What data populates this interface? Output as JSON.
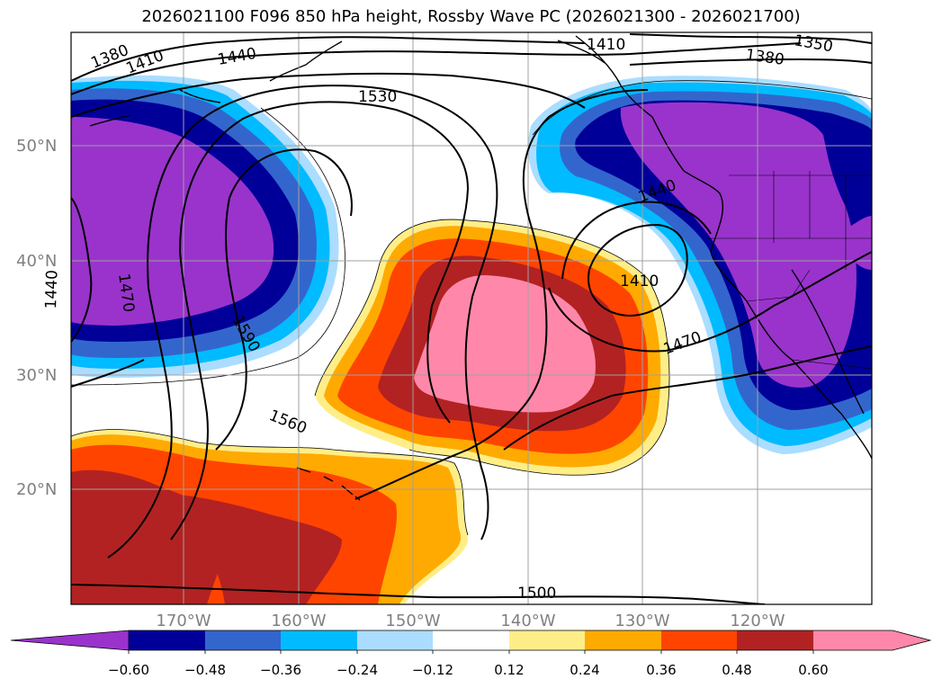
{
  "title": "2026021100 F096 850 hPa height, Rossby Wave PC (2026021300 - 2026021700)",
  "lat_labels": [
    "50°N",
    "40°N",
    "30°N",
    "20°N"
  ],
  "lon_labels": [
    "170°W",
    "160°W",
    "150°W",
    "140°W",
    "130°W",
    "120°W"
  ],
  "contour_labels": [
    "1380",
    "1410",
    "1440",
    "1530",
    "1410",
    "1350",
    "1380",
    "1440",
    "1410",
    "1470",
    "1590",
    "1560",
    "1470",
    "1440",
    "1500"
  ],
  "colorbar": {
    "ticks": [
      "−0.60",
      "−0.48",
      "−0.36",
      "−0.24",
      "−0.12",
      "0.12",
      "0.24",
      "0.36",
      "0.48",
      "0.60"
    ],
    "colors": [
      "#9933cc",
      "#000099",
      "#3366cc",
      "#00bbff",
      "#aaddff",
      "#ffffff",
      "#ffee88",
      "#ffaa00",
      "#ff4400",
      "#b22222",
      "#ff88aa"
    ]
  },
  "colors": {
    "purple": "#9933cc",
    "navy": "#000099",
    "blue": "#3366cc",
    "cyan": "#00bbff",
    "lightblue": "#aaddff",
    "yellow": "#ffee88",
    "orange": "#ffaa00",
    "redorange": "#ff4400",
    "darkred": "#b22222",
    "pink": "#ff88aa"
  }
}
